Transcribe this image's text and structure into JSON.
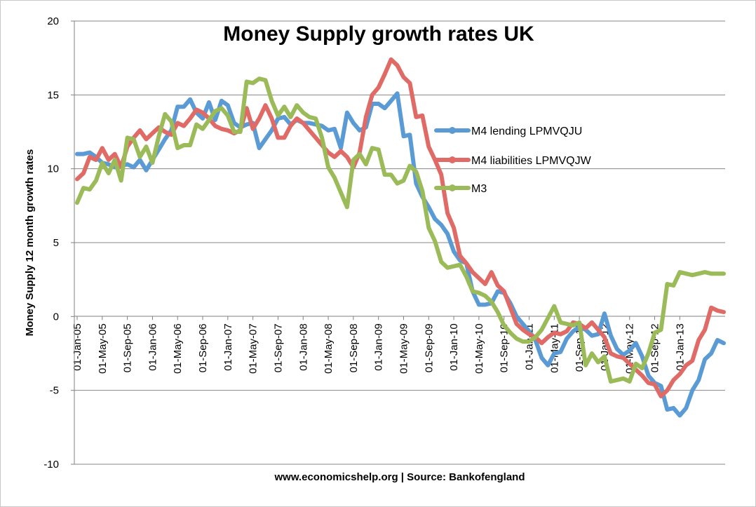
{
  "chart_data": {
    "type": "line",
    "title": "Money Supply growth rates UK",
    "xlabel": "",
    "ylabel": "Money Supply 12 month growth rates",
    "ylim": [
      -10,
      20
    ],
    "yticks": [
      -10,
      -5,
      0,
      5,
      10,
      15,
      20
    ],
    "grid": true,
    "legend_position": "right-middle",
    "footer": "www.economicshelp.org | Source: Bankofengland",
    "x_tick_labels": [
      "01-Jan-05",
      "01-May-05",
      "01-Sep-05",
      "01-Jan-06",
      "01-May-06",
      "01-Sep-06",
      "01-Jan-07",
      "01-May-07",
      "01-Sep-07",
      "01-Jan-08",
      "01-May-08",
      "01-Sep-08",
      "01-Jan-09",
      "01-May-09",
      "01-Sep-09",
      "01-Jan-10",
      "01-May-10",
      "01-Sep-10",
      "01-Jan-11",
      "01-May-11",
      "01-Sep-11",
      "01-Jan-12",
      "01-May-12",
      "01-Sep-12",
      "01-Jan-13"
    ],
    "x_start": "Jan-05",
    "x_end": "Mar-13",
    "series": [
      {
        "name": "M4 lending LPMVQJU",
        "color": "#5b9bd5",
        "values": [
          11.0,
          11.0,
          11.1,
          10.8,
          10.4,
          10.3,
          10.1,
          10.2,
          10.3,
          10.1,
          10.6,
          9.9,
          10.6,
          11.3,
          12.0,
          12.6,
          14.2,
          14.2,
          14.7,
          13.8,
          13.4,
          14.5,
          13.3,
          14.6,
          14.3,
          13.1,
          12.8,
          13.0,
          13.1,
          11.4,
          12.0,
          12.6,
          13.4,
          13.5,
          13.0,
          13.3,
          13.1,
          13.1,
          13.0,
          12.9,
          12.6,
          12.7,
          11.4,
          13.8,
          13.1,
          12.6,
          12.8,
          14.4,
          14.4,
          14.1,
          14.6,
          15.1,
          12.2,
          12.3,
          9.0,
          8.1,
          7.4,
          6.6,
          6.2,
          5.6,
          4.4,
          3.8,
          3.6,
          1.7,
          0.8,
          0.8,
          0.9,
          1.7,
          1.6,
          0.9,
          0.0,
          -0.5,
          -1.0,
          -1.6,
          -2.8,
          -3.3,
          -2.5,
          -2.4,
          -1.5,
          -1.0,
          -0.7,
          -0.9,
          -1.3,
          -1.2,
          0.2,
          -1.3,
          -2.2,
          -2.6,
          -2.3,
          -1.8,
          -2.7,
          -4.0,
          -4.5,
          -4.7,
          -6.3,
          -6.2,
          -6.7,
          -6.2,
          -5.0,
          -4.3,
          -2.9,
          -2.5,
          -1.6,
          -1.8
        ]
      },
      {
        "name": "M4 liabilities LPMVQJW",
        "color": "#e06b66",
        "values": [
          9.3,
          9.7,
          10.8,
          10.6,
          11.4,
          10.6,
          11.0,
          10.1,
          11.5,
          12.1,
          12.6,
          12.0,
          12.4,
          12.8,
          12.5,
          12.3,
          13.1,
          12.9,
          13.4,
          14.0,
          13.8,
          13.4,
          12.9,
          12.7,
          12.6,
          12.4,
          12.6,
          14.1,
          12.7,
          13.4,
          14.3,
          13.4,
          12.1,
          12.1,
          12.9,
          13.4,
          13.1,
          12.6,
          12.1,
          11.6,
          11.1,
          10.8,
          11.2,
          10.8,
          10.1,
          11.1,
          13.5,
          15.0,
          15.5,
          16.4,
          17.4,
          17.0,
          16.2,
          15.8,
          13.5,
          13.6,
          11.5,
          10.6,
          9.6,
          7.0,
          6.0,
          4.1,
          3.6,
          3.0,
          2.6,
          2.2,
          3.0,
          2.1,
          1.7,
          0.6,
          -0.5,
          -0.9,
          -1.2,
          -1.4,
          -1.8,
          -1.4,
          -1.1,
          -1.2,
          -1.0,
          -0.4,
          -0.5,
          -0.8,
          -0.4,
          -0.9,
          -1.4,
          -2.5,
          -2.7,
          -2.8,
          -3.2,
          -3.6,
          -4.0,
          -4.5,
          -4.6,
          -5.4,
          -5.0,
          -4.3,
          -3.9,
          -3.3,
          -3.0,
          -1.6,
          -0.9,
          0.6,
          0.4,
          0.3
        ]
      },
      {
        "name": "M3",
        "color": "#9bbb59",
        "values": [
          7.7,
          8.7,
          8.6,
          9.2,
          10.4,
          9.7,
          10.6,
          9.2,
          12.1,
          12.0,
          10.8,
          11.5,
          10.4,
          12.2,
          13.7,
          13.2,
          11.4,
          11.6,
          11.6,
          13.0,
          12.7,
          13.3,
          13.9,
          14.1,
          13.6,
          12.5,
          12.5,
          15.9,
          15.8,
          16.1,
          16.0,
          14.6,
          13.6,
          14.2,
          13.5,
          14.3,
          13.8,
          13.5,
          13.4,
          12.1,
          10.1,
          9.4,
          8.4,
          7.4,
          10.6,
          11.0,
          10.3,
          11.4,
          11.3,
          9.6,
          9.6,
          9.0,
          9.2,
          10.2,
          9.8,
          8.5,
          6.0,
          5.1,
          3.7,
          3.3,
          3.4,
          3.5,
          2.7,
          1.7,
          1.6,
          1.4,
          1.0,
          0.3,
          -0.6,
          -1.1,
          -1.5,
          -1.7,
          -1.7,
          -1.4,
          -0.9,
          -0.1,
          0.7,
          -0.4,
          -0.5,
          -0.6,
          -0.4,
          -3.3,
          -2.5,
          -3.1,
          -2.7,
          -4.4,
          -4.3,
          -4.2,
          -4.4,
          -3.2,
          -3.5,
          -2.5,
          -1.1,
          -0.9,
          2.2,
          2.1,
          3.0,
          2.9,
          2.8,
          2.9,
          3.0,
          2.9,
          2.9,
          2.9
        ]
      }
    ]
  }
}
